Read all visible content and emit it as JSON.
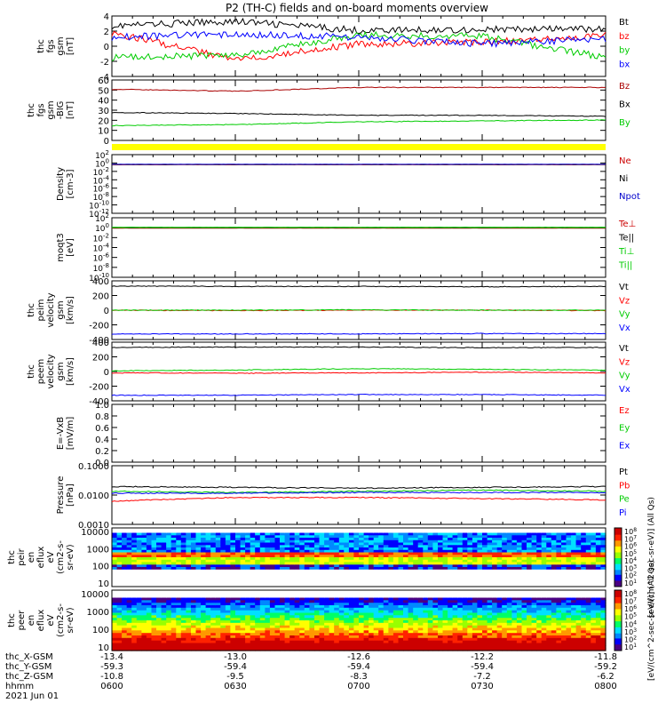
{
  "chart_data": {
    "type": "line",
    "title": "P2 (TH-C) fields and on-board moments overview",
    "x": [
      "0600",
      "0630",
      "0700",
      "0730",
      "0800"
    ],
    "x_label": "hhmm",
    "date_label": "2021 Jun 01",
    "ephemeris": [
      {
        "label": "thc_X-GSM",
        "values": [
          "-13.4",
          "-13.0",
          "-12.6",
          "-12.2",
          "-11.8"
        ]
      },
      {
        "label": "thc_Y-GSM",
        "values": [
          "-59.3",
          "-59.4",
          "-59.4",
          "-59.4",
          "-59.2"
        ]
      },
      {
        "label": "thc_Z-GSM",
        "values": [
          "-10.8",
          "-9.5",
          "-8.3",
          "-7.2",
          "-6.2"
        ]
      }
    ],
    "panels": [
      {
        "id": "fgs",
        "ylabel": [
          "thc",
          "fgs",
          "gsm",
          "[nT]"
        ],
        "yticks": [
          "4",
          "2",
          "0",
          "-2",
          "-4"
        ],
        "ylim": [
          -4,
          4
        ],
        "series": [
          {
            "name": "Bt",
            "color": "#000000",
            "values": [
              2.7,
              3.3,
              2.1,
              2.2,
              2.3
            ]
          },
          {
            "name": "bz",
            "color": "#ff0000",
            "values": [
              1.8,
              -1.8,
              0.3,
              0.5,
              1.4
            ]
          },
          {
            "name": "by",
            "color": "#00cc00",
            "values": [
              -1.5,
              -1.2,
              1.5,
              1.3,
              -1.5
            ]
          },
          {
            "name": "bx",
            "color": "#0000ff",
            "values": [
              1.2,
              1.6,
              1.2,
              0.3,
              1.0
            ]
          }
        ]
      },
      {
        "id": "fgs-big",
        "ylabel": [
          "thc",
          "fgs",
          "gsm",
          "-BIG",
          "[nT]"
        ],
        "yticks": [
          "60",
          "50",
          "40",
          "30",
          "20",
          "10",
          "0"
        ],
        "ylim": [
          -5,
          60
        ],
        "series": [
          {
            "name": "Bz",
            "color": "#aa0000",
            "values": [
              50,
              48,
              52,
              52,
              52
            ]
          },
          {
            "name": "Bx",
            "color": "#000000",
            "values": [
              25,
              24,
              22,
              22,
              21
            ]
          },
          {
            "name": "By",
            "color": "#00cc00",
            "values": [
              11,
              12,
              15,
              16,
              17
            ]
          }
        ]
      },
      {
        "id": "density",
        "ylabel": [
          "Density",
          "[cm-3]"
        ],
        "yticks": [
          "10^2",
          "10^0",
          "10^-2",
          "10^-4",
          "10^-6",
          "10^-8",
          "10^-10",
          "10^-12"
        ],
        "ylim": [
          -12,
          2
        ],
        "series": [
          {
            "name": "Ne",
            "color": "#cc0000",
            "values": [
              0.4,
              0.4,
              0.4,
              0.4,
              0.4
            ]
          },
          {
            "name": "Ni",
            "color": "#000000",
            "values": [
              0.45,
              0.45,
              0.45,
              0.45,
              0.45
            ]
          },
          {
            "name": "Npot",
            "color": "#0000cc",
            "values": [
              0.5,
              0.5,
              0.5,
              0.5,
              0.5
            ]
          }
        ]
      },
      {
        "id": "temperature",
        "ylabel": [
          "moqt3",
          "[eV]"
        ],
        "yticks": [
          "10^2",
          "10^0",
          "10^-2",
          "10^-4",
          "10^-6",
          "10^-8",
          "10^-10"
        ],
        "ylim": [
          -10,
          2
        ],
        "series": [
          {
            "name": "Te⊥",
            "color": "#cc0000",
            "values": [
              0.8,
              0.8,
              0.8,
              0.8,
              0.8
            ]
          },
          {
            "name": "Te||",
            "color": "#000000",
            "values": [
              1.0,
              1.0,
              1.0,
              1.0,
              1.0
            ]
          },
          {
            "name": "Ti⊥",
            "color": "#00cc00",
            "values": [
              1.1,
              1.1,
              1.1,
              1.1,
              1.1
            ]
          },
          {
            "name": "Ti||",
            "color": "#00cc00",
            "values": [
              1.2,
              1.2,
              1.2,
              1.2,
              1.2
            ]
          }
        ]
      },
      {
        "id": "peim",
        "ylabel": [
          "thc",
          "peim",
          "velocity",
          "gsm",
          "[km/s]"
        ],
        "yticks": [
          "400",
          "200",
          "0",
          "-200",
          "-400"
        ],
        "ylim": [
          -420,
          420
        ],
        "series": [
          {
            "name": "Vt",
            "color": "#000000",
            "values": [
              345,
              340,
              340,
              335,
              340
            ]
          },
          {
            "name": "Vz",
            "color": "#ff0000",
            "values": [
              0,
              -5,
              0,
              0,
              -5
            ]
          },
          {
            "name": "Vy",
            "color": "#00cc00",
            "values": [
              0,
              0,
              5,
              0,
              0
            ]
          },
          {
            "name": "Vx",
            "color": "#0000ff",
            "values": [
              -340,
              -340,
              -340,
              -335,
              -335
            ]
          }
        ]
      },
      {
        "id": "peem",
        "ylabel": [
          "thc",
          "peem",
          "velocity",
          "gsm",
          "[km/s]"
        ],
        "yticks": [
          "400",
          "200",
          "0",
          "-200",
          "-400"
        ],
        "ylim": [
          -420,
          420
        ],
        "series": [
          {
            "name": "Vt",
            "color": "#000000",
            "values": [
              345,
              350,
              350,
              340,
              345
            ]
          },
          {
            "name": "Vz",
            "color": "#ff0000",
            "values": [
              -20,
              -25,
              -20,
              -10,
              -20
            ]
          },
          {
            "name": "Vy",
            "color": "#00cc00",
            "values": [
              10,
              20,
              40,
              30,
              20
            ]
          },
          {
            "name": "Vx",
            "color": "#0000ff",
            "values": [
              -340,
              -340,
              -330,
              -330,
              -340
            ]
          }
        ]
      },
      {
        "id": "efield",
        "ylabel": [
          "E=-VxB",
          "[mV/m]"
        ],
        "yticks": [
          "1.0",
          "0.8",
          "0.6",
          "0.4",
          "0.2",
          "0.0"
        ],
        "ylim": [
          0,
          1
        ],
        "series": [
          {
            "name": "Ez",
            "color": "#ff0000",
            "values": []
          },
          {
            "name": "Ey",
            "color": "#00cc00",
            "values": []
          },
          {
            "name": "Ex",
            "color": "#0000ff",
            "values": []
          }
        ]
      },
      {
        "id": "pressure",
        "ylabel": [
          "Pressure",
          "[nPa]"
        ],
        "yticks": [
          "0.1000",
          "0.0100",
          "0.0010"
        ],
        "ylim": [
          -3.4,
          -1
        ],
        "series": [
          {
            "name": "Pt",
            "color": "#000000",
            "values": [
              0.014,
              0.013,
              0.012,
              0.013,
              0.014
            ]
          },
          {
            "name": "Pb",
            "color": "#ff0000",
            "values": [
              0.0035,
              0.005,
              0.005,
              0.0045,
              0.004
            ]
          },
          {
            "name": "Pe",
            "color": "#00cc00",
            "values": [
              0.009,
              0.008,
              0.009,
              0.01,
              0.009
            ]
          },
          {
            "name": "Pi",
            "color": "#0000ff",
            "values": [
              0.0075,
              0.0075,
              0.008,
              0.008,
              0.008
            ]
          }
        ]
      }
    ],
    "spectrograms": [
      {
        "id": "peir",
        "type": "heatmap",
        "ylabel": [
          "thc",
          "peir",
          "en",
          "eflux",
          "eV",
          "(cm2-s-",
          "sr-eV)"
        ],
        "yticks": [
          "10000",
          "1000",
          "100",
          "10"
        ],
        "colorbar_label": "[eV/(cm^2-sec-sr-eV)] (All Qs)",
        "colorbar_ticks": [
          "10^8",
          "10^7",
          "10^6",
          "10^5",
          "10^4",
          "10^3",
          "10^2",
          "10^1"
        ]
      },
      {
        "id": "peer",
        "type": "heatmap",
        "ylabel": [
          "thc",
          "peer",
          "en",
          "eflux",
          "eV",
          "(cm2-s-",
          "sr-eV)"
        ],
        "yticks": [
          "10000",
          "1000",
          "100",
          "10"
        ],
        "colorbar_label": "[eV/(cm^2-sec-sr-eV)] (All Qs)",
        "colorbar_ticks": [
          "10^8",
          "10^7",
          "10^6",
          "10^5",
          "10^4",
          "10^3",
          "10^2",
          "10^1"
        ]
      }
    ]
  }
}
